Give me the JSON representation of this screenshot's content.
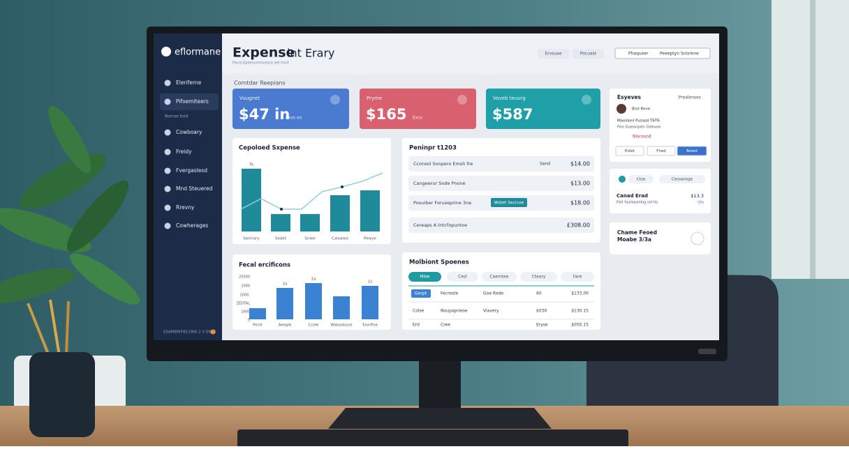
{
  "sidebar": {
    "brand": "eflormane",
    "items": [
      "Eleriferne",
      "Pifoemiteers",
      "Rorrae toid",
      "Cowboary",
      "Freidy",
      "Fvergaslesd",
      "Mnd Steuered",
      "Rrevny",
      "Cowherages"
    ],
    "footer": "ESAMERIFIECONS 2 V ENSE"
  },
  "header": {
    "title": "Expense",
    "title_rest": "int Erary",
    "subtitle": "Pocre Epeensrerovesce eef Irant",
    "buttons": [
      "Ervsuae",
      "Pocuast"
    ],
    "search": "Phaqueer",
    "search_action": "Peeeptyn Snisrene"
  },
  "section_label": "Comtdar Reepians",
  "cards": [
    {
      "label": "Vuugnet",
      "value": "$47 in",
      "note": "Exvs on"
    },
    {
      "label": "Pryme",
      "value": "$165",
      "note": "Excs"
    },
    {
      "label": "Voveb teuurg",
      "value": "$587"
    }
  ],
  "chart1": {
    "title": "Cepoloed Sxpense",
    "categories": [
      "Semrary",
      "Sedet",
      "Sniee",
      "Caioatey",
      "Pewye"
    ],
    "values": [
      90,
      25,
      25,
      52,
      59
    ],
    "value_labels": [
      "Ta",
      null,
      null,
      null,
      null
    ],
    "trend": [
      32,
      47,
      32,
      32,
      57,
      64,
      72,
      84
    ]
  },
  "chart2": {
    "title": "Fecal ercificons",
    "ytick_labels": [
      "25000",
      "2000",
      "2000.",
      "ZEDTAL",
      "1600",
      "5"
    ],
    "categories": [
      "Pectr",
      "Aeegle",
      "Ccele",
      "Wabadosse",
      "Erorlfoe"
    ],
    "values": [
      16,
      45,
      52,
      33,
      48
    ],
    "value_labels": [
      null,
      "1a",
      "1a",
      null,
      "1s"
    ]
  },
  "pending": {
    "title": "Peninpr t1203",
    "rows": [
      [
        "Cconsol Sonpero Emsh fre",
        "Sand",
        "$14.00"
      ],
      [
        "Cangeerur Sode Pnone",
        null,
        "$13.00"
      ],
      [
        "Poouiber Foruseprine 3ne",
        "Wstet Secicoe",
        "$18.00"
      ],
      [
        "Cereaps A tntcfopuntoe",
        null,
        "£308.00"
      ]
    ]
  },
  "multi": {
    "title": "Molbiont Spoenes",
    "tabs": [
      "Mlee",
      "Cesl",
      "Caemtee",
      "Cteary",
      "Fare"
    ],
    "rows": [
      [
        "Gerpt",
        "Fecreste",
        "Goe Rede",
        "60",
        "$133.00"
      ],
      [
        "Colse",
        "Noupaprieoe",
        "Viavery",
        "$030",
        "$130.15"
      ],
      [
        "Erd",
        "Cree",
        null,
        "Eryse",
        "$050.15"
      ]
    ]
  },
  "profile": {
    "title": "Esyeves",
    "link": "Prealenses",
    "name": "Bnd Reve",
    "lines": [
      "Maoslonl Pusasd T6T6",
      "Feo Gueonpdn Gebuse"
    ],
    "tag": "Nlarasod",
    "buttons": [
      "Enlet",
      "Fned",
      "Boled"
    ]
  },
  "summary": {
    "pills": [
      "Ctse",
      "Cessannge"
    ],
    "title": "Canad Erad",
    "amount": "$13.3",
    "desc": "Fett fourbasnllog sof tts",
    "link": "Ulo"
  },
  "notice": {
    "line1": "Chame Feoed",
    "line2": "Moabe 3/3a"
  }
}
